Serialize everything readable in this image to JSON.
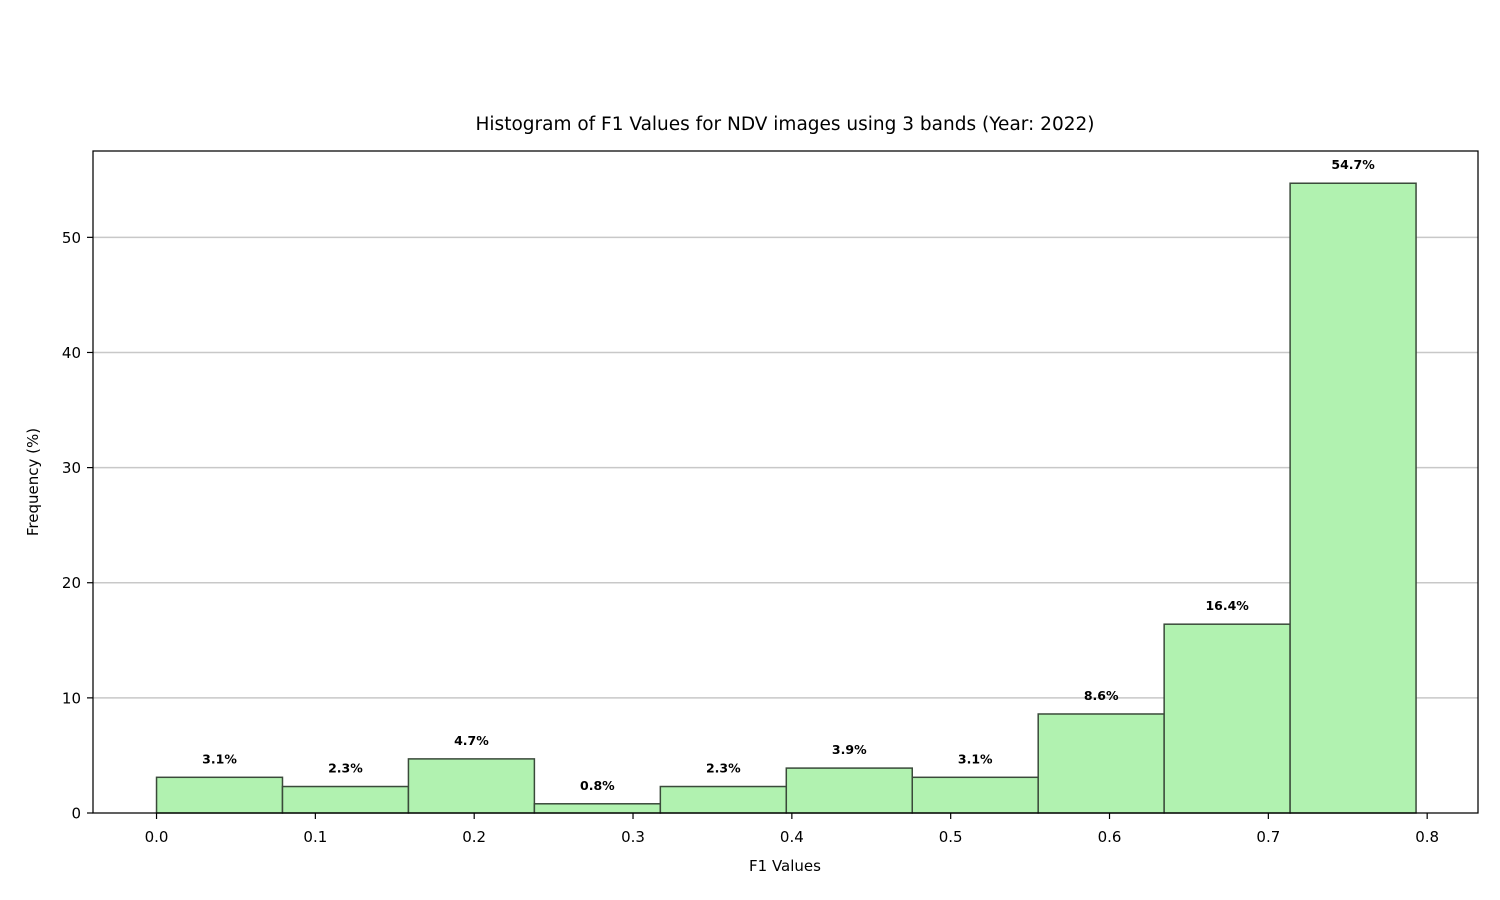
{
  "chart_data": {
    "type": "bar",
    "title": "Histogram of F1 Values for NDV images using 3 bands (Year: 2022)",
    "xlabel": "F1 Values",
    "ylabel": "Frequency (%)",
    "xlim": [
      -0.04,
      0.832
    ],
    "ylim": [
      0,
      57.5
    ],
    "x_ticks": [
      "0.0",
      "0.1",
      "0.2",
      "0.3",
      "0.4",
      "0.5",
      "0.6",
      "0.7",
      "0.8"
    ],
    "x_tick_values": [
      0.0,
      0.1,
      0.2,
      0.3,
      0.4,
      0.5,
      0.6,
      0.7,
      0.8
    ],
    "y_ticks": [
      "0",
      "10",
      "20",
      "30",
      "40",
      "50"
    ],
    "y_tick_values": [
      0,
      10,
      20,
      30,
      40,
      50
    ],
    "grid": "y",
    "bar_color": "#b1f2b0",
    "edge_color": "#3a4a3a",
    "bins": [
      {
        "x0": 0.0,
        "x1": 0.0793,
        "value": 3.1,
        "label": "3.1%"
      },
      {
        "x0": 0.0793,
        "x1": 0.1586,
        "value": 2.3,
        "label": "2.3%"
      },
      {
        "x0": 0.1586,
        "x1": 0.2379,
        "value": 4.7,
        "label": "4.7%"
      },
      {
        "x0": 0.2379,
        "x1": 0.3172,
        "value": 0.8,
        "label": "0.8%"
      },
      {
        "x0": 0.3172,
        "x1": 0.3965,
        "value": 2.3,
        "label": "2.3%"
      },
      {
        "x0": 0.3965,
        "x1": 0.4758,
        "value": 3.9,
        "label": "3.9%"
      },
      {
        "x0": 0.4758,
        "x1": 0.5551,
        "value": 3.1,
        "label": "3.1%"
      },
      {
        "x0": 0.5551,
        "x1": 0.6344,
        "value": 8.6,
        "label": "8.6%"
      },
      {
        "x0": 0.6344,
        "x1": 0.7137,
        "value": 16.4,
        "label": "16.4%"
      },
      {
        "x0": 0.7137,
        "x1": 0.793,
        "value": 54.7,
        "label": "54.7%"
      }
    ]
  }
}
